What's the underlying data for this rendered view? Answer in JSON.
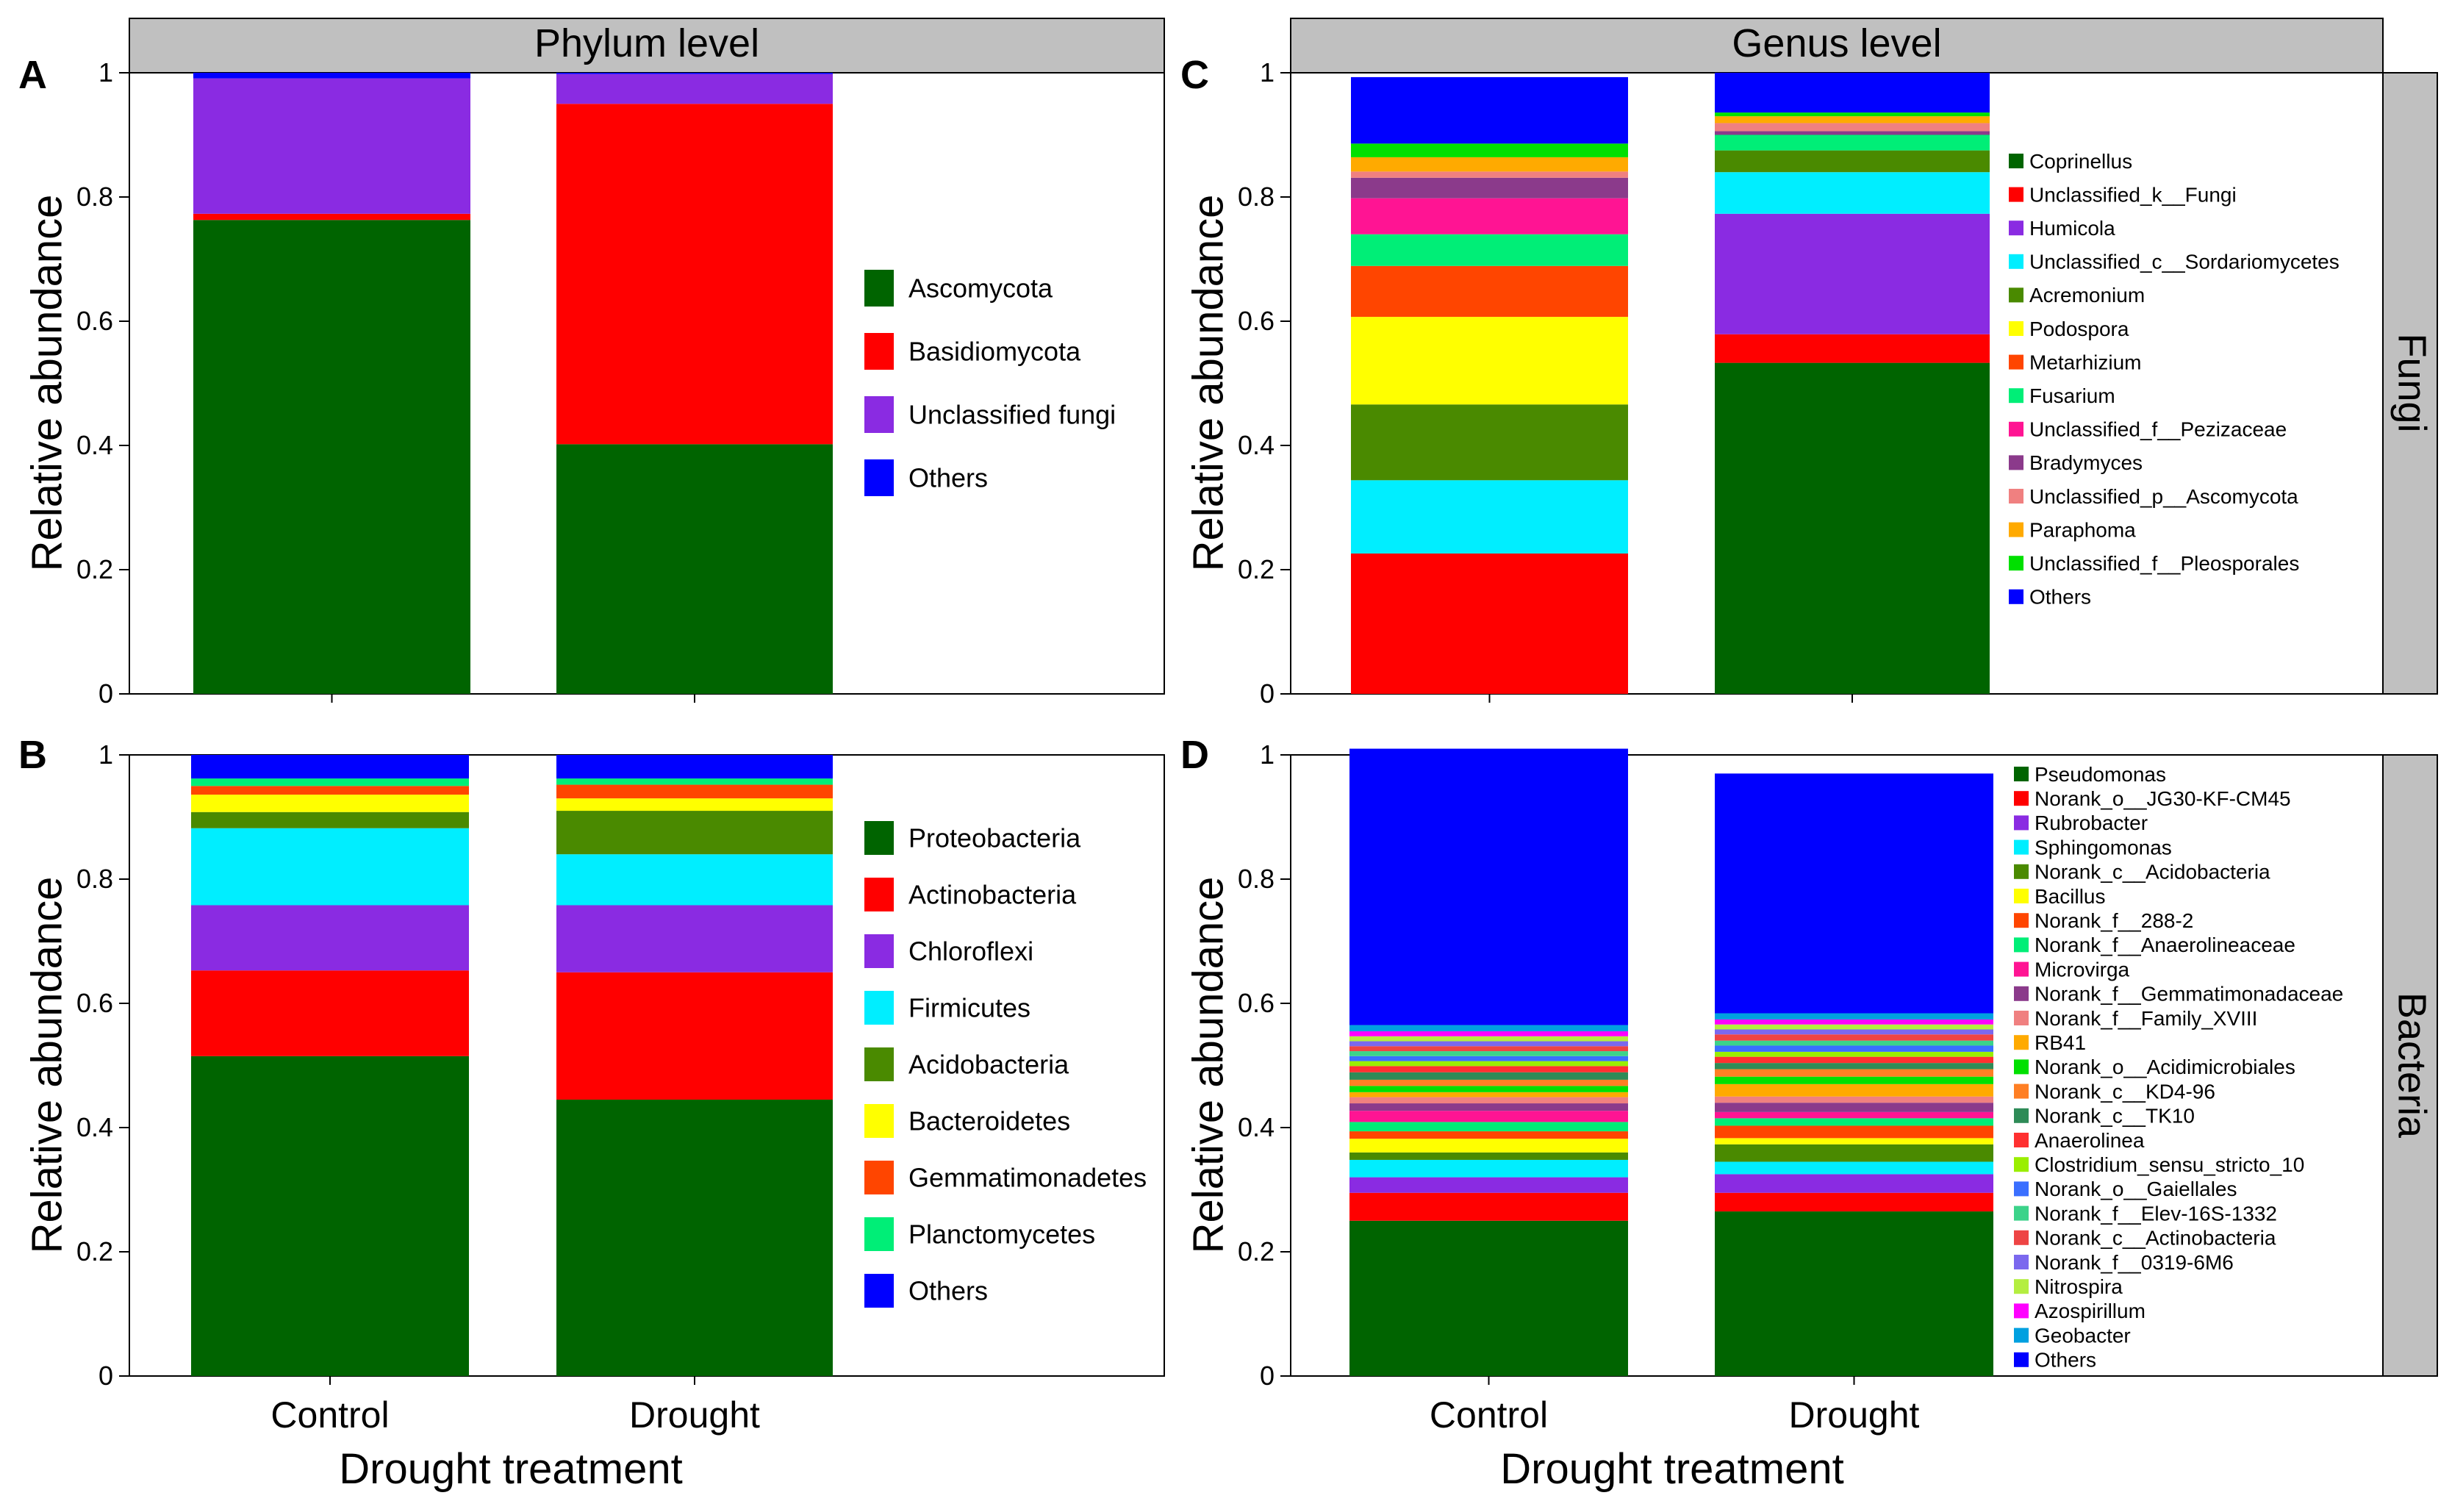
{
  "figure": {
    "x_label_left": "Drought treatment",
    "x_label_right": "Drought treatment",
    "y_label": "Relative abundance",
    "header_phylum": "Phylum level",
    "header_genus": "Genus level",
    "strip_fungi": "Fungi",
    "strip_bacteria": "Bacteria"
  },
  "chart_data": [
    {
      "id": "A",
      "type": "bar",
      "stacked": true,
      "panel_letter": "A",
      "title": "Phylum level",
      "xlabel": "",
      "ylabel": "Relative abundance",
      "ylim": [
        0,
        1
      ],
      "yticks": [
        "0",
        "0.2",
        "0.4",
        "0.6",
        "0.8",
        "1"
      ],
      "show_x_ticks": false,
      "categories": [
        "Control",
        "Drought"
      ],
      "series": [
        {
          "name": "Ascomycota",
          "color": "#006400",
          "values": [
            0.763,
            0.402
          ]
        },
        {
          "name": "Basidiomycota",
          "color": "#ff0000",
          "values": [
            0.01,
            0.548
          ]
        },
        {
          "name": "Unclassified fungi",
          "color": "#8a2be2",
          "values": [
            0.218,
            0.048
          ]
        },
        {
          "name": "Others",
          "color": "#0000ff",
          "values": [
            0.009,
            0.002
          ]
        }
      ]
    },
    {
      "id": "B",
      "type": "bar",
      "stacked": true,
      "panel_letter": "B",
      "title": "",
      "xlabel": "",
      "ylabel": "Relative abundance",
      "ylim": [
        0,
        1
      ],
      "yticks": [
        "0",
        "0.2",
        "0.4",
        "0.6",
        "0.8",
        "1"
      ],
      "show_x_ticks": true,
      "categories": [
        "Control",
        "Drought"
      ],
      "series": [
        {
          "name": "Proteobacteria",
          "color": "#006400",
          "values": [
            0.515,
            0.445
          ]
        },
        {
          "name": "Actinobacteria",
          "color": "#ff0000",
          "values": [
            0.138,
            0.205
          ]
        },
        {
          "name": "Chloroflexi",
          "color": "#8a2be2",
          "values": [
            0.105,
            0.108
          ]
        },
        {
          "name": "Firmicutes",
          "color": "#00eeff",
          "values": [
            0.124,
            0.082
          ]
        },
        {
          "name": "Acidobacteria",
          "color": "#4a8a00",
          "values": [
            0.026,
            0.07
          ]
        },
        {
          "name": "Bacteroidetes",
          "color": "#ffff00",
          "values": [
            0.028,
            0.02
          ]
        },
        {
          "name": "Gemmatimonadetes",
          "color": "#ff4500",
          "values": [
            0.014,
            0.022
          ]
        },
        {
          "name": "Planctomycetes",
          "color": "#00ee77",
          "values": [
            0.012,
            0.01
          ]
        },
        {
          "name": "Others",
          "color": "#0000ff",
          "values": [
            0.038,
            0.038
          ]
        }
      ]
    },
    {
      "id": "C",
      "type": "bar",
      "stacked": true,
      "panel_letter": "C",
      "title": "Genus level",
      "xlabel": "",
      "ylabel": "Relative abundance",
      "ylim": [
        0,
        1
      ],
      "yticks": [
        "0",
        "0.2",
        "0.4",
        "0.6",
        "0.8",
        "1"
      ],
      "show_x_ticks": false,
      "strip": "Fungi",
      "categories": [
        "Control",
        "Drought"
      ],
      "series": [
        {
          "name": "Coprinellus",
          "color": "#006400",
          "values": [
            0.0,
            0.533
          ]
        },
        {
          "name": "Unclassified_k__Fungi",
          "color": "#ff0000",
          "values": [
            0.226,
            0.046
          ]
        },
        {
          "name": "Humicola",
          "color": "#8a2be2",
          "values": [
            0.0,
            0.194
          ]
        },
        {
          "name": "Unclassified_c__Sordariomycetes",
          "color": "#00eeff",
          "values": [
            0.118,
            0.067
          ]
        },
        {
          "name": "Acremonium",
          "color": "#4a8a00",
          "values": [
            0.122,
            0.035
          ]
        },
        {
          "name": "Podospora",
          "color": "#ffff00",
          "values": [
            0.141,
            0.0
          ]
        },
        {
          "name": "Metarhizium",
          "color": "#ff4500",
          "values": [
            0.082,
            0.0
          ]
        },
        {
          "name": "Fusarium",
          "color": "#00ee77",
          "values": [
            0.051,
            0.025
          ]
        },
        {
          "name": "Unclassified_f__Pezizaceae",
          "color": "#ff1493",
          "values": [
            0.058,
            0.0
          ]
        },
        {
          "name": "Bradymyces",
          "color": "#8b3a8b",
          "values": [
            0.033,
            0.006
          ]
        },
        {
          "name": "Unclassified_p__Ascomycota",
          "color": "#f08080",
          "values": [
            0.01,
            0.013
          ]
        },
        {
          "name": "Paraphoma",
          "color": "#ffaa00",
          "values": [
            0.023,
            0.011
          ]
        },
        {
          "name": "Unclassified_f__Pleosporales",
          "color": "#00e000",
          "values": [
            0.022,
            0.006
          ]
        },
        {
          "name": "Others",
          "color": "#0000ff",
          "values": [
            0.107,
            0.064
          ]
        }
      ]
    },
    {
      "id": "D",
      "type": "bar",
      "stacked": true,
      "panel_letter": "D",
      "title": "",
      "xlabel": "",
      "ylabel": "Relative abundance",
      "ylim": [
        0,
        1
      ],
      "yticks": [
        "0",
        "0.2",
        "0.4",
        "0.6",
        "0.8",
        "1"
      ],
      "show_x_ticks": true,
      "strip": "Bacteria",
      "categories": [
        "Control",
        "Drought"
      ],
      "series": [
        {
          "name": "Pseudomonas",
          "color": "#006400",
          "values": [
            0.25,
            0.265
          ]
        },
        {
          "name": "Norank_o__JG30-KF-CM45",
          "color": "#ff0000",
          "values": [
            0.045,
            0.03
          ]
        },
        {
          "name": "Rubrobacter",
          "color": "#8a2be2",
          "values": [
            0.025,
            0.03
          ]
        },
        {
          "name": "Sphingomonas",
          "color": "#00eeff",
          "values": [
            0.028,
            0.02
          ]
        },
        {
          "name": "Norank_c__Acidobacteria",
          "color": "#4a8a00",
          "values": [
            0.012,
            0.028
          ]
        },
        {
          "name": "Bacillus",
          "color": "#ffff00",
          "values": [
            0.022,
            0.01
          ]
        },
        {
          "name": "Norank_f__288-2",
          "color": "#ff4500",
          "values": [
            0.012,
            0.02
          ]
        },
        {
          "name": "Norank_f__Anaerolineaceae",
          "color": "#00ee77",
          "values": [
            0.015,
            0.012
          ]
        },
        {
          "name": "Microvirga",
          "color": "#ff1493",
          "values": [
            0.018,
            0.01
          ]
        },
        {
          "name": "Norank_f__Gemmatimonadaceae",
          "color": "#8b3a8b",
          "values": [
            0.012,
            0.015
          ]
        },
        {
          "name": "Norank_f__Family_XVIII",
          "color": "#f08080",
          "values": [
            0.01,
            0.01
          ]
        },
        {
          "name": "RB41",
          "color": "#ffaa00",
          "values": [
            0.008,
            0.02
          ]
        },
        {
          "name": "Norank_o__Acidimicrobiales",
          "color": "#00e000",
          "values": [
            0.01,
            0.012
          ]
        },
        {
          "name": "Norank_c__KD4-96",
          "color": "#ff7f24",
          "values": [
            0.01,
            0.012
          ]
        },
        {
          "name": "Norank_c__TK10",
          "color": "#2e8b57",
          "values": [
            0.012,
            0.01
          ]
        },
        {
          "name": "Anaerolinea",
          "color": "#ff3030",
          "values": [
            0.01,
            0.01
          ]
        },
        {
          "name": "Clostridium_sensu_stricto_10",
          "color": "#9aee00",
          "values": [
            0.008,
            0.008
          ]
        },
        {
          "name": "Norank_o__Gaiellales",
          "color": "#3a6fff",
          "values": [
            0.008,
            0.01
          ]
        },
        {
          "name": "Norank_f__Elev-16S-1332",
          "color": "#3cd38a",
          "values": [
            0.008,
            0.008
          ]
        },
        {
          "name": "Norank_c__Actinobacteria",
          "color": "#ee4444",
          "values": [
            0.008,
            0.01
          ]
        },
        {
          "name": "Norank_f__0319-6M6",
          "color": "#7b68ee",
          "values": [
            0.008,
            0.008
          ]
        },
        {
          "name": "Nitrospira",
          "color": "#b4ee40",
          "values": [
            0.008,
            0.008
          ]
        },
        {
          "name": "Azospirillum",
          "color": "#ff00ff",
          "values": [
            0.008,
            0.008
          ]
        },
        {
          "name": "Geobacter",
          "color": "#00a0e0",
          "values": [
            0.01,
            0.01
          ]
        },
        {
          "name": "Others",
          "color": "#0000ff",
          "values": [
            0.445,
            0.386
          ]
        }
      ]
    }
  ]
}
